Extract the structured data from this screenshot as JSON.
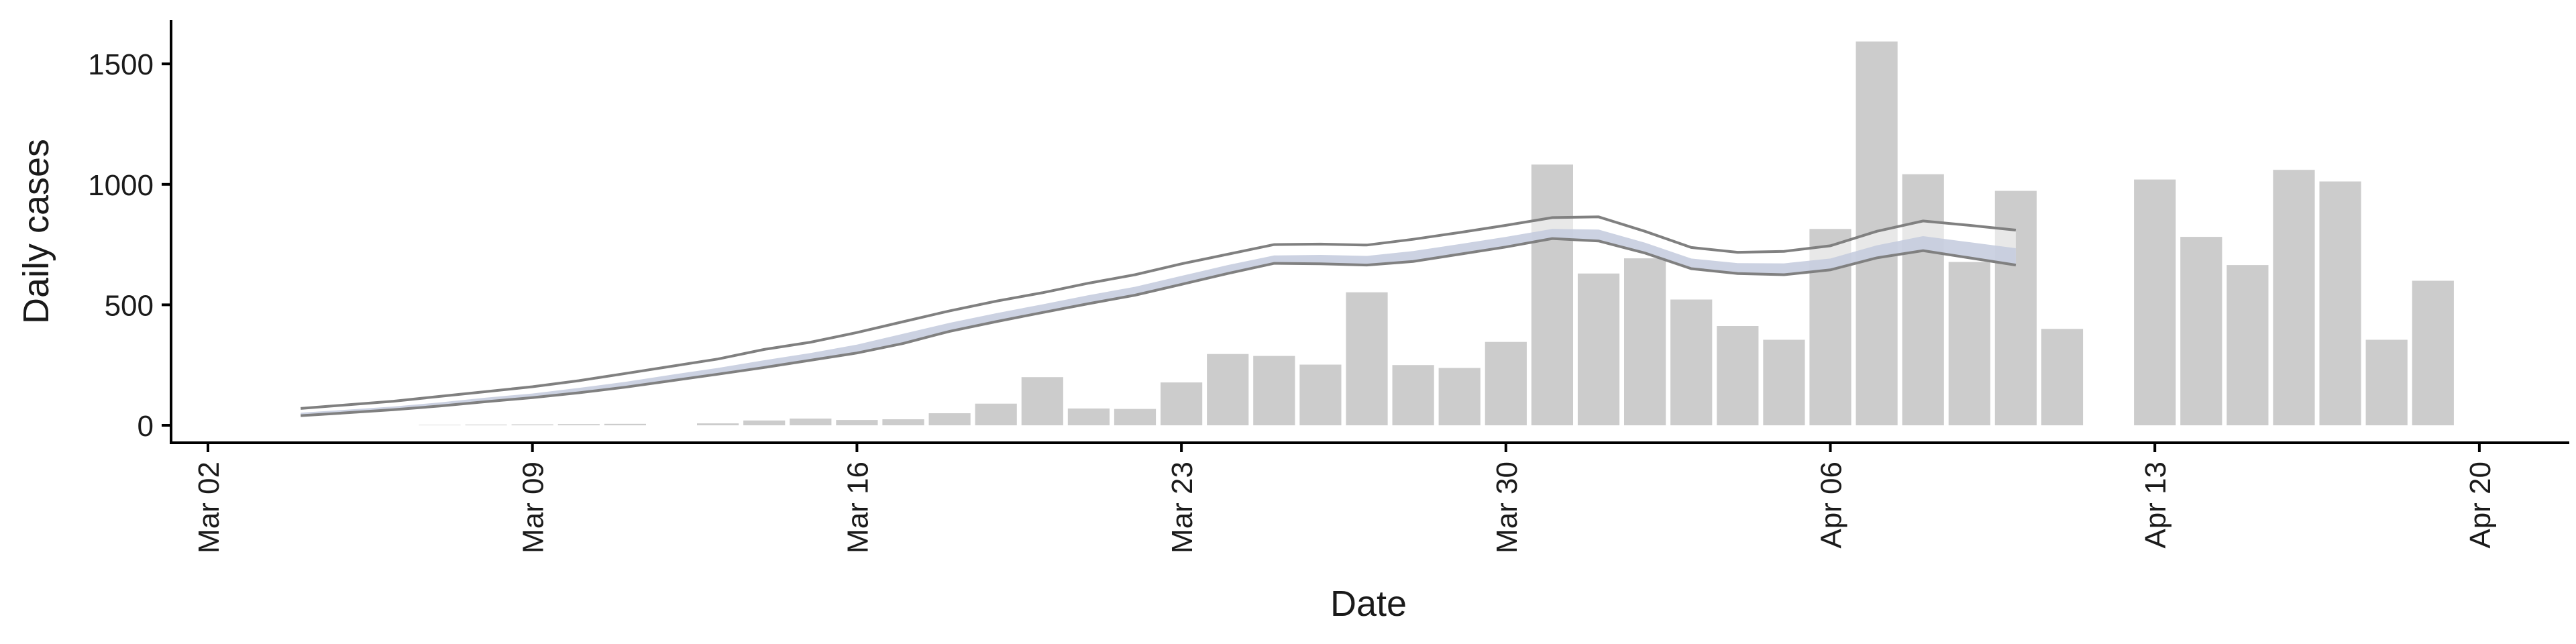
{
  "chart_data": {
    "type": "bar",
    "title": "",
    "xlabel": "Date",
    "ylabel": "Daily cases",
    "ylim": [
      -70,
      1670
    ],
    "xlim": [
      "2020-03-02",
      "2020-04-21"
    ],
    "grid": false,
    "legend": "none",
    "y_ticks": [
      0,
      500,
      1000,
      1500
    ],
    "x_ticks": [
      {
        "date": "2020-03-02",
        "label": "Mar 02"
      },
      {
        "date": "2020-03-09",
        "label": "Mar 09"
      },
      {
        "date": "2020-03-16",
        "label": "Mar 16"
      },
      {
        "date": "2020-03-23",
        "label": "Mar 23"
      },
      {
        "date": "2020-03-30",
        "label": "Mar 30"
      },
      {
        "date": "2020-04-06",
        "label": "Apr 06"
      },
      {
        "date": "2020-04-13",
        "label": "Apr 13"
      },
      {
        "date": "2020-04-20",
        "label": "Apr 20"
      }
    ],
    "bars": {
      "color": "#cccccc",
      "x": [
        "2020-03-07",
        "2020-03-08",
        "2020-03-09",
        "2020-03-10",
        "2020-03-11",
        "2020-03-12",
        "2020-03-13",
        "2020-03-14",
        "2020-03-15",
        "2020-03-16",
        "2020-03-17",
        "2020-03-18",
        "2020-03-19",
        "2020-03-20",
        "2020-03-21",
        "2020-03-22",
        "2020-03-23",
        "2020-03-24",
        "2020-03-25",
        "2020-03-26",
        "2020-03-27",
        "2020-03-28",
        "2020-03-29",
        "2020-03-30",
        "2020-03-31",
        "2020-04-01",
        "2020-04-02",
        "2020-04-03",
        "2020-04-04",
        "2020-04-05",
        "2020-04-06",
        "2020-04-07",
        "2020-04-08",
        "2020-04-09",
        "2020-04-10",
        "2020-04-11",
        "2020-04-12",
        "2020-04-13",
        "2020-04-14",
        "2020-04-15",
        "2020-04-16",
        "2020-04-17",
        "2020-04-18",
        "2020-04-19"
      ],
      "values": [
        2,
        3,
        4,
        5,
        6,
        0,
        8,
        20,
        28,
        22,
        25,
        50,
        90,
        200,
        70,
        68,
        178,
        296,
        288,
        252,
        552,
        250,
        238,
        346,
        1082,
        630,
        693,
        522,
        412,
        355,
        815,
        1593,
        1042,
        678,
        973,
        400,
        0,
        1020,
        782,
        665,
        1060,
        1012,
        355,
        600
      ]
    },
    "bands": {
      "x": [
        "2020-03-04",
        "2020-03-05",
        "2020-03-06",
        "2020-03-07",
        "2020-03-08",
        "2020-03-09",
        "2020-03-10",
        "2020-03-11",
        "2020-03-12",
        "2020-03-13",
        "2020-03-14",
        "2020-03-15",
        "2020-03-16",
        "2020-03-17",
        "2020-03-18",
        "2020-03-19",
        "2020-03-20",
        "2020-03-21",
        "2020-03-22",
        "2020-03-23",
        "2020-03-24",
        "2020-03-25",
        "2020-03-26",
        "2020-03-27",
        "2020-03-28",
        "2020-03-29",
        "2020-03-30",
        "2020-03-31",
        "2020-04-01",
        "2020-04-02",
        "2020-04-03",
        "2020-04-04",
        "2020-04-05",
        "2020-04-06",
        "2020-04-07",
        "2020-04-08",
        "2020-04-09",
        "2020-04-10"
      ],
      "outer_upper": [
        70,
        85,
        100,
        120,
        140,
        160,
        185,
        215,
        245,
        275,
        315,
        345,
        385,
        430,
        475,
        515,
        550,
        590,
        625,
        670,
        710,
        750,
        752,
        748,
        772,
        800,
        830,
        862,
        865,
        805,
        738,
        718,
        722,
        745,
        805,
        848,
        830,
        810
      ],
      "outer_lower": [
        40,
        52,
        65,
        80,
        98,
        115,
        135,
        158,
        185,
        212,
        240,
        270,
        300,
        340,
        390,
        430,
        468,
        505,
        540,
        585,
        630,
        672,
        670,
        665,
        680,
        710,
        740,
        775,
        765,
        715,
        650,
        630,
        625,
        645,
        695,
        725,
        695,
        665
      ],
      "inner_upper": [
        52,
        65,
        78,
        95,
        115,
        132,
        155,
        180,
        210,
        238,
        270,
        300,
        335,
        380,
        425,
        465,
        502,
        540,
        575,
        620,
        665,
        705,
        707,
        703,
        723,
        752,
        782,
        815,
        812,
        758,
        692,
        673,
        672,
        692,
        747,
        785,
        760,
        735
      ],
      "inner_lower": [
        42,
        54,
        67,
        82,
        100,
        117,
        137,
        160,
        187,
        214,
        242,
        272,
        302,
        342,
        392,
        432,
        470,
        507,
        542,
        587,
        632,
        674,
        672,
        667,
        682,
        712,
        742,
        777,
        767,
        717,
        652,
        632,
        627,
        647,
        697,
        727,
        697,
        667
      ],
      "outer_edge_color": "#808080",
      "inner_fill_color": "#c3cadd"
    }
  }
}
